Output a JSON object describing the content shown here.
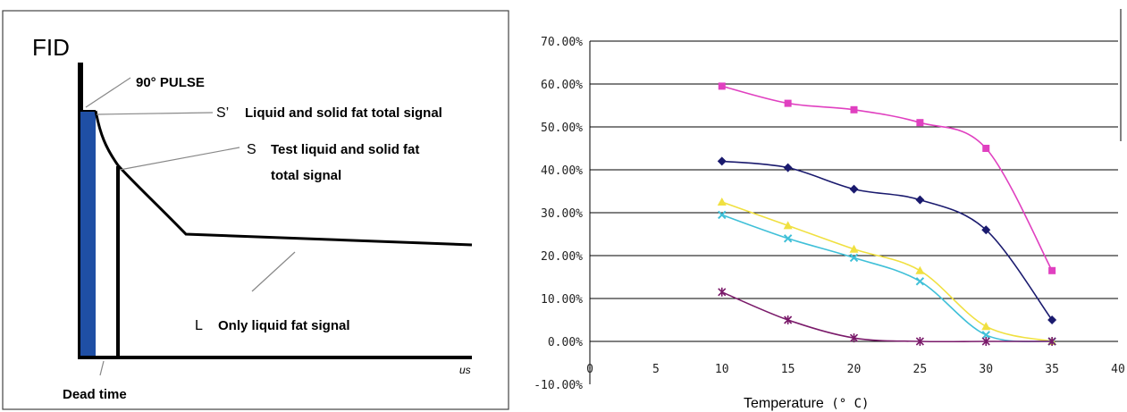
{
  "fid_diagram": {
    "title": "FID",
    "pulse_label": "90° PULSE",
    "s_prime_letter": "S’",
    "s_prime_text": "Liquid and solid fat total signal",
    "s_letter": "S",
    "s_text_line1": "Test liquid and solid fat",
    "s_text_line2": "total signal",
    "l_letter": "L",
    "l_text": "Only liquid fat signal",
    "x_unit": "us",
    "dead_time_label": "Dead time",
    "bar_color": "#1f4fa5"
  },
  "chart_data": {
    "type": "line",
    "title": "",
    "xlabel": "Temperature",
    "xlabel_unit": "(° C)",
    "ylabel": "",
    "x": [
      10,
      15,
      20,
      25,
      30,
      35
    ],
    "xlim": [
      0,
      40
    ],
    "xticks": [
      "0",
      "5",
      "10",
      "15",
      "20",
      "25",
      "30",
      "35",
      "40"
    ],
    "ylim": [
      -10,
      70
    ],
    "yticks": [
      "70.00%",
      "60.00%",
      "50.00%",
      "40.00%",
      "30.00%",
      "20.00%",
      "10.00%",
      "0.00%",
      "-10.00%"
    ],
    "grid": "horizontal",
    "legend": "none",
    "series": [
      {
        "marker": "square",
        "color": "#e040c0",
        "values": [
          59.5,
          55.5,
          54.0,
          51.0,
          45.0,
          16.5
        ]
      },
      {
        "marker": "diamond",
        "color": "#1a1a6e",
        "values": [
          42.0,
          40.5,
          35.5,
          33.0,
          26.0,
          5.0
        ]
      },
      {
        "marker": "triangle",
        "color": "#f0e040",
        "values": [
          32.5,
          27.0,
          21.5,
          16.5,
          3.5,
          0.0
        ]
      },
      {
        "marker": "x",
        "color": "#40c0d8",
        "values": [
          29.5,
          24.0,
          19.5,
          14.0,
          1.5,
          0.0
        ]
      },
      {
        "marker": "star",
        "color": "#7a1a6a",
        "values": [
          11.5,
          5.0,
          0.8,
          0.0,
          0.0,
          0.0
        ]
      }
    ]
  }
}
